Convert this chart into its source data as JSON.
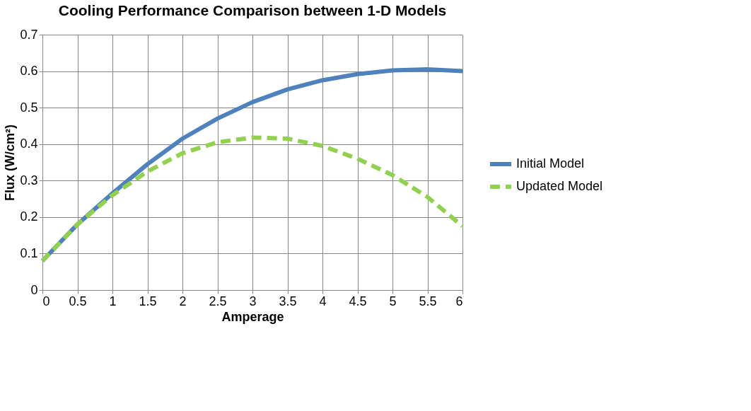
{
  "chart_data": {
    "type": "line",
    "title": "Cooling Performance Comparison between 1-D Models",
    "xlabel": "Amperage",
    "ylabel": "Flux (W/cm²)",
    "x": [
      0,
      0.5,
      1,
      1.5,
      2,
      2.5,
      3,
      3.5,
      4,
      4.5,
      5,
      5.5,
      6
    ],
    "series": [
      {
        "name": "Initial Model",
        "color": "#4f81bd",
        "line_style": "solid",
        "values": [
          0.08,
          0.18,
          0.265,
          0.345,
          0.415,
          0.47,
          0.515,
          0.55,
          0.575,
          0.592,
          0.602,
          0.605,
          0.6
        ]
      },
      {
        "name": "Updated Model",
        "color": "#92d050",
        "line_style": "dashed",
        "values": [
          0.08,
          0.18,
          0.26,
          0.325,
          0.375,
          0.405,
          0.418,
          0.415,
          0.395,
          0.36,
          0.315,
          0.255,
          0.175
        ]
      }
    ],
    "xlim": [
      0,
      6
    ],
    "xticks": [
      0,
      0.5,
      1,
      1.5,
      2,
      2.5,
      3,
      3.5,
      4,
      4.5,
      5,
      5.5,
      6
    ],
    "ylim": [
      0,
      0.7
    ],
    "yticks": [
      0,
      0.1,
      0.2,
      0.3,
      0.4,
      0.5,
      0.6,
      0.7
    ],
    "grid": true,
    "legend": "right",
    "marker": "none"
  }
}
